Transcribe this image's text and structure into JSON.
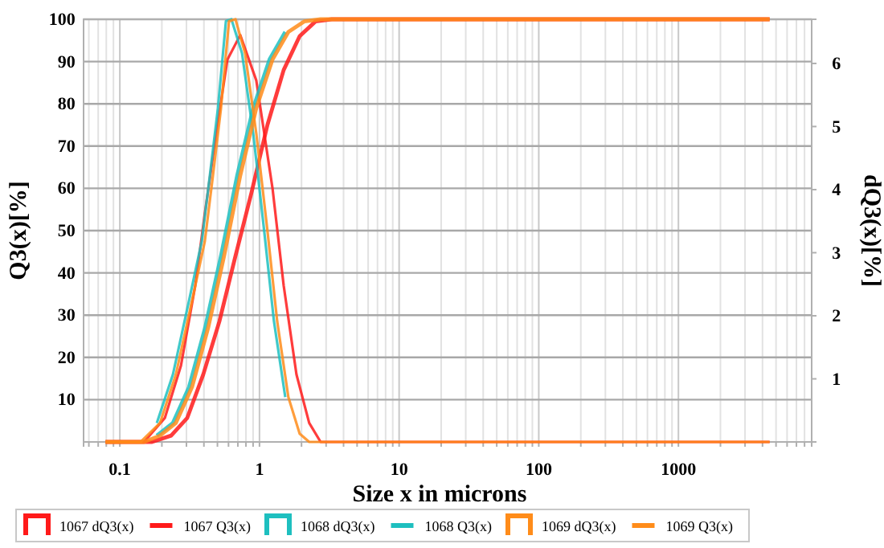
{
  "chart_data": {
    "type": "line",
    "xlabel": "Size x in microns",
    "ylabel": "Q3(x)[%]",
    "y2label": "dQ3(x)[%]",
    "log": "x",
    "grid": true,
    "legend": "bottom",
    "xlim": [
      0.055,
      9000
    ],
    "ylim": [
      0,
      100
    ],
    "y2lim": [
      0,
      6.7
    ],
    "xticks": [
      {
        "value": 0.06,
        "label": null
      },
      {
        "value": 0.07,
        "label": null
      },
      {
        "value": 0.08,
        "label": null
      },
      {
        "value": 0.09,
        "label": null
      },
      0.1,
      {
        "value": 0.2,
        "label": null
      },
      {
        "value": 0.3,
        "label": null
      },
      {
        "value": 0.4,
        "label": null
      },
      {
        "value": 0.5,
        "label": null
      },
      {
        "value": 0.6,
        "label": null
      },
      {
        "value": 0.7,
        "label": null
      },
      {
        "value": 0.8,
        "label": null
      },
      {
        "value": 0.9,
        "label": null
      },
      1,
      {
        "value": 2,
        "label": null
      },
      {
        "value": 3,
        "label": null
      },
      {
        "value": 4,
        "label": null
      },
      {
        "value": 5,
        "label": null
      },
      {
        "value": 6,
        "label": null
      },
      {
        "value": 7,
        "label": null
      },
      {
        "value": 8,
        "label": null
      },
      {
        "value": 9,
        "label": null
      },
      10,
      {
        "value": 20,
        "label": null
      },
      {
        "value": 30,
        "label": null
      },
      {
        "value": 40,
        "label": null
      },
      {
        "value": 50,
        "label": null
      },
      {
        "value": 60,
        "label": null
      },
      {
        "value": 70,
        "label": null
      },
      {
        "value": 80,
        "label": null
      },
      {
        "value": 90,
        "label": null
      },
      100,
      {
        "value": 200,
        "label": null
      },
      {
        "value": 300,
        "label": null
      },
      {
        "value": 400,
        "label": null
      },
      {
        "value": 500,
        "label": null
      },
      {
        "value": 600,
        "label": null
      },
      {
        "value": 700,
        "label": null
      },
      {
        "value": 800,
        "label": null
      },
      {
        "value": 900,
        "label": null
      },
      1000,
      {
        "value": 2000,
        "label": null
      },
      {
        "value": 3000,
        "label": null
      },
      {
        "value": 4000,
        "label": null
      },
      {
        "value": 5000,
        "label": null
      },
      {
        "value": 6000,
        "label": null
      },
      {
        "value": 7000,
        "label": null
      },
      {
        "value": 8000,
        "label": null
      },
      {
        "value": 9000,
        "label": null
      }
    ],
    "yticks": [
      10,
      20,
      30,
      40,
      50,
      60,
      70,
      80,
      90,
      100
    ],
    "y2ticks": [
      1,
      2,
      3,
      4,
      5,
      6
    ],
    "series": [
      {
        "name": "1067 dQ3(x)",
        "color": "#ff1a1a",
        "axis": "y2",
        "x": [
          0.079,
          0.149,
          0.21,
          0.274,
          0.347,
          0.406,
          0.49,
          0.589,
          0.728,
          0.949,
          1.24,
          1.49,
          1.84,
          2.27,
          2.74,
          4500
        ],
        "values": [
          0,
          0,
          0.38,
          1.21,
          2.48,
          3.62,
          4.89,
          6.06,
          6.45,
          5.73,
          4.02,
          2.48,
          1.07,
          0.3,
          0,
          0
        ]
      },
      {
        "name": "1067 Q3(x)",
        "color": "#ff1a1a",
        "x": [
          0.079,
          0.17,
          0.233,
          0.304,
          0.396,
          0.516,
          0.673,
          0.877,
          1.14,
          1.49,
          1.94,
          2.52,
          3.29,
          4500
        ],
        "values": [
          0,
          0,
          1.5,
          5.7,
          16,
          28.5,
          44,
          59,
          75,
          88,
          96,
          99.5,
          100,
          100
        ]
      },
      {
        "name": "1068 dQ3(x)",
        "color": "#1ebfbf",
        "axis": "y2",
        "x": [
          0.184,
          0.24,
          0.313,
          0.386,
          0.441,
          0.504,
          0.575,
          0.63,
          0.75,
          0.902,
          1.08,
          1.27,
          1.53
        ],
        "values": [
          0.3,
          1.07,
          2.24,
          3.18,
          4.22,
          5.29,
          6.67,
          6.7,
          6.16,
          4.89,
          3.35,
          1.91,
          0.71
        ]
      },
      {
        "name": "1068 Q3(x)",
        "color": "#1ebfbf",
        "x": [
          0.184,
          0.24,
          0.313,
          0.408,
          0.53,
          0.692,
          0.902,
          1.18,
          1.53
        ],
        "values": [
          1.5,
          4.5,
          13,
          27,
          44,
          63,
          79,
          90.5,
          97
        ]
      },
      {
        "name": "1069 dQ3(x)",
        "color": "#ff8c1a",
        "axis": "y2",
        "x": [
          0.079,
          0.141,
          0.194,
          0.252,
          0.329,
          0.406,
          0.464,
          0.53,
          0.605,
          0.673,
          0.789,
          0.949,
          1.14,
          1.34,
          1.61,
          1.94,
          2.27,
          4500
        ],
        "values": [
          0,
          0,
          0.3,
          1.07,
          2.24,
          3.18,
          4.22,
          5.29,
          6.67,
          6.7,
          6.16,
          4.89,
          3.35,
          1.91,
          0.71,
          0.13,
          0,
          0
        ]
      },
      {
        "name": "1069 Q3(x)",
        "color": "#ff8c1a",
        "x": [
          0.079,
          0.149,
          0.194,
          0.252,
          0.329,
          0.429,
          0.558,
          0.728,
          0.949,
          1.24,
          1.61,
          2.09,
          2.74,
          4500
        ],
        "values": [
          0,
          0,
          1.5,
          4.5,
          13,
          27,
          44,
          63,
          79,
          90.5,
          97,
          99.5,
          100,
          100
        ]
      }
    ]
  }
}
